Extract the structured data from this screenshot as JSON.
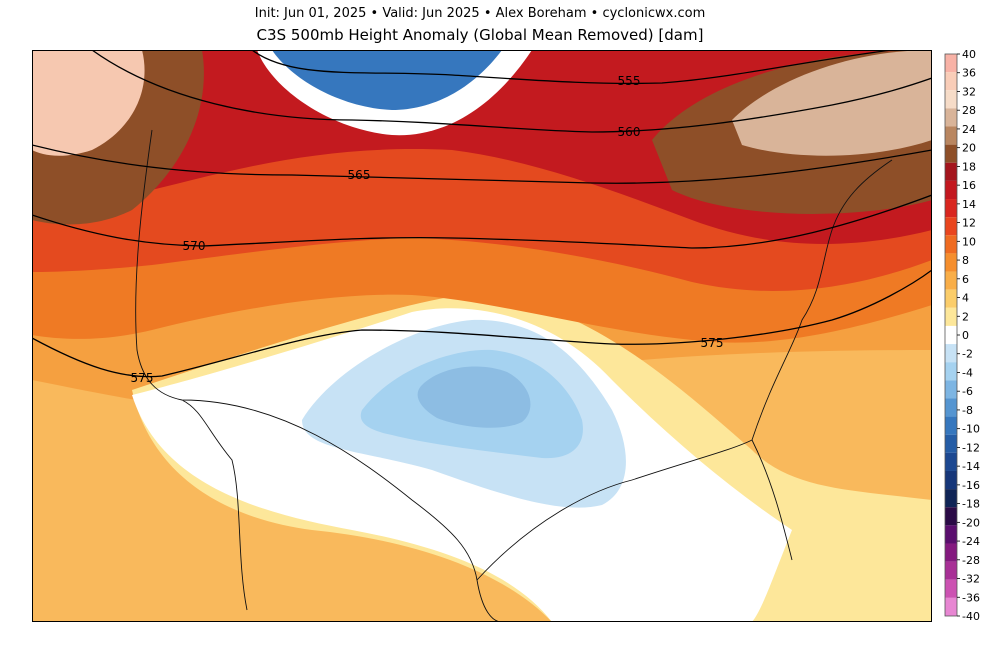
{
  "header": {
    "line1": "Init: Jun 01, 2025  •  Valid: Jun 2025  •  Alex Boreham  •  cyclonicwx.com",
    "line2": "C3S 500mb Height Anomaly (Global Mean Removed) [dam]"
  },
  "contours": [
    {
      "label": "555"
    },
    {
      "label": "560"
    },
    {
      "label": "565"
    },
    {
      "label": "570"
    },
    {
      "label": "575"
    },
    {
      "label": "575"
    }
  ],
  "colorbar": {
    "ticks": [
      "40",
      "36",
      "32",
      "28",
      "24",
      "20",
      "18",
      "16",
      "14",
      "12",
      "10",
      "8",
      "6",
      "4",
      "2",
      "0",
      "-2",
      "-4",
      "-6",
      "-8",
      "-10",
      "-12",
      "-14",
      "-16",
      "-18",
      "-20",
      "-24",
      "-28",
      "-32",
      "-36",
      "-40"
    ],
    "colors": [
      "#f8b2a6",
      "#f9cdb8",
      "#f6dcc8",
      "#d9b499",
      "#b98660",
      "#8e4f28",
      "#a4151d",
      "#c3171f",
      "#d9261f",
      "#e9451e",
      "#ef6b21",
      "#f58e2d",
      "#f9ae48",
      "#fbcd6a",
      "#fde79a",
      "#ffffff",
      "#c7e2f5",
      "#a5d2f0",
      "#7db5e3",
      "#5595d1",
      "#3677be",
      "#255da6",
      "#1c4891",
      "#163679",
      "#0f2456",
      "#2a0a46",
      "#5a0e6e",
      "#84197f",
      "#a83096",
      "#cc52b2",
      "#e786d2"
    ]
  }
}
